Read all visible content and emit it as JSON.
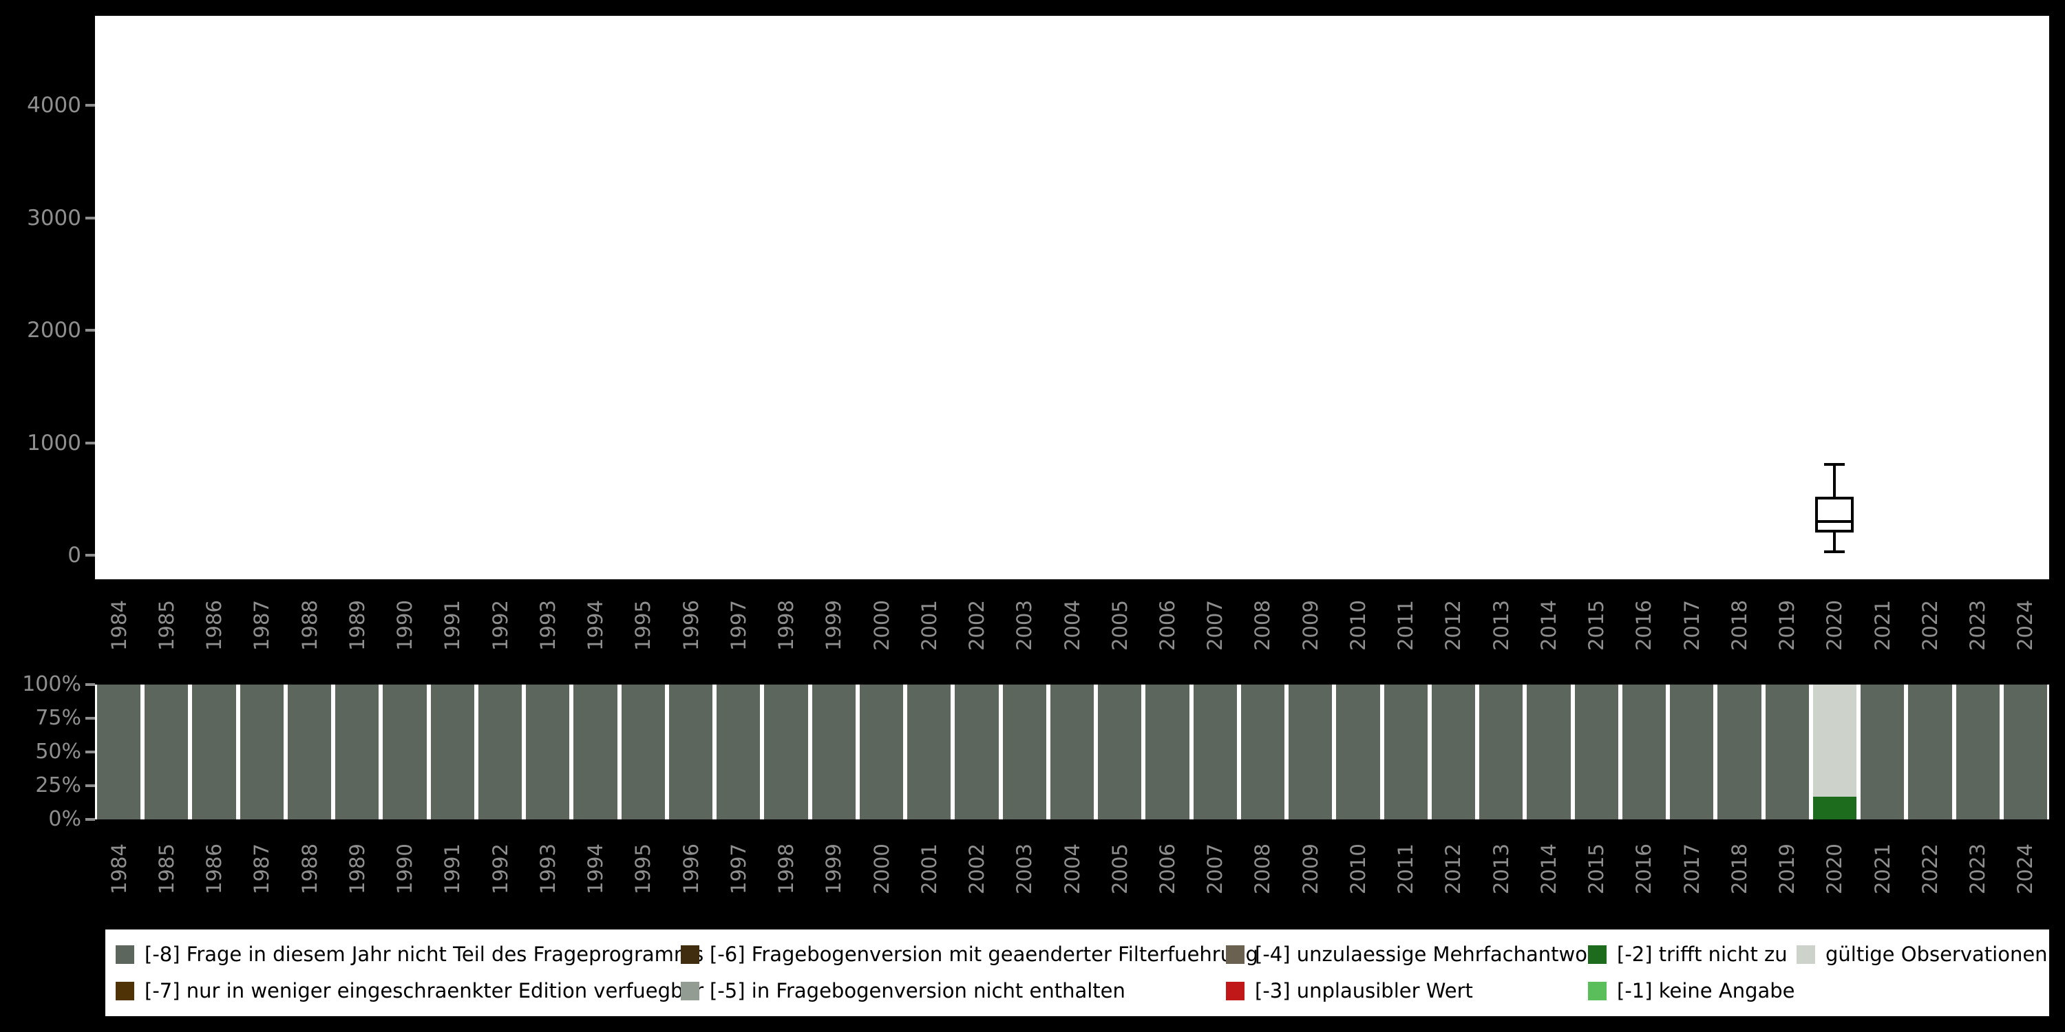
{
  "page": {
    "background": "#000000",
    "plot_background": "#ffffff",
    "axis_label_color": "#8f8f8f",
    "box_stroke_color": "#000000"
  },
  "category_colors": {
    "[-8] Frage in diesem Jahr nicht Teil des Frageprogramms": "#5c665c",
    "[-7] nur in weniger eingeschraenkter Edition verfuegbar": "#4f3206",
    "[-6] Fragebogenversion mit geaenderter Filterfuehrung": "#402d10",
    "[-5] in Fragebogenversion nicht enthalten": "#929c92",
    "[-4] unzulaessige Mehrfachantwort": "#6b6150",
    "[-3] unplausibler Wert": "#c01818",
    "[-2] trifft nicht zu": "#1d6b1d",
    "[-1] keine Angabe": "#5abf5a",
    "gültige Observationen": "#cdd2ca"
  },
  "chart_data": [
    {
      "type": "boxplot",
      "title": "",
      "xlabel": "",
      "ylabel": "",
      "ylim": [
        0,
        4800
      ],
      "yticks": [
        0,
        1000,
        2000,
        3000,
        4000
      ],
      "grid": false,
      "categories": [
        "1984",
        "1985",
        "1986",
        "1987",
        "1988",
        "1989",
        "1990",
        "1991",
        "1992",
        "1993",
        "1994",
        "1995",
        "1996",
        "1997",
        "1998",
        "1999",
        "2000",
        "2001",
        "2002",
        "2003",
        "2004",
        "2005",
        "2006",
        "2007",
        "2008",
        "2009",
        "2010",
        "2011",
        "2012",
        "2013",
        "2014",
        "2015",
        "2016",
        "2017",
        "2018",
        "2019",
        "2020",
        "2021",
        "2022",
        "2023",
        "2024"
      ],
      "boxes": [
        {
          "category": "2020",
          "whisker_low": 30,
          "q1": 200,
          "median": 300,
          "q3": 520,
          "whisker_high": 810
        }
      ]
    },
    {
      "type": "bar",
      "subtype": "stacked-percent",
      "title": "",
      "xlabel": "",
      "ylabel": "",
      "grid": false,
      "yticks": [
        "100%",
        "75%",
        "50%",
        "25%",
        "0%"
      ],
      "categories": [
        "1984",
        "1985",
        "1986",
        "1987",
        "1988",
        "1989",
        "1990",
        "1991",
        "1992",
        "1993",
        "1994",
        "1995",
        "1996",
        "1997",
        "1998",
        "1999",
        "2000",
        "2001",
        "2002",
        "2003",
        "2004",
        "2005",
        "2006",
        "2007",
        "2008",
        "2009",
        "2010",
        "2011",
        "2012",
        "2013",
        "2014",
        "2015",
        "2016",
        "2017",
        "2018",
        "2019",
        "2020",
        "2021",
        "2022",
        "2023",
        "2024"
      ],
      "default_segments": [
        {
          "label": "[-8] Frage in diesem Jahr nicht Teil des Frageprogramms",
          "pct": 100
        }
      ],
      "overrides": {
        "2020": [
          {
            "label": "[-2] trifft nicht zu",
            "pct": 17
          },
          {
            "label": "gültige Observationen",
            "pct": 83
          }
        ]
      }
    }
  ],
  "legend": {
    "position": "bottom",
    "background": "#ffffff",
    "rows": [
      [
        {
          "label": "[-8] Frage in diesem Jahr nicht Teil des Frageprogramms"
        },
        {
          "label": "[-6] Fragebogenversion mit geaenderter Filterfuehrung"
        },
        {
          "label": "[-4] unzulaessige Mehrfachantwort"
        },
        {
          "label": "[-2] trifft nicht zu"
        },
        {
          "label": "gültige Observationen"
        }
      ],
      [
        {
          "label": "[-7] nur in weniger eingeschraenkter Edition verfuegbar"
        },
        {
          "label": "[-5] in Fragebogenversion nicht enthalten"
        },
        {
          "label": "[-3] unplausibler Wert"
        },
        {
          "label": "[-1] keine Angabe"
        }
      ]
    ]
  }
}
